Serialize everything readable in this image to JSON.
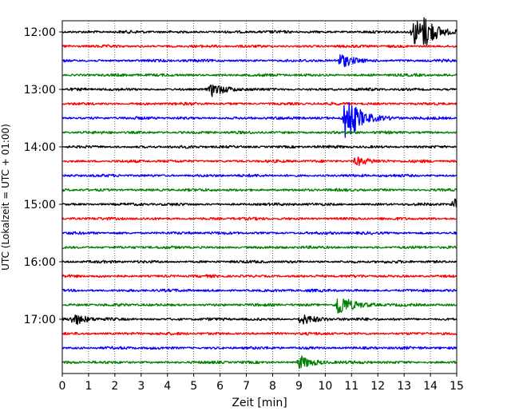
{
  "chart_data": {
    "type": "line",
    "title": "",
    "xlabel": "Zeit  [min]",
    "ylabel": "UTC (Lokalzeit = UTC + 01:00)",
    "xlim": [
      0,
      15
    ],
    "x_ticks": [
      "0",
      "1",
      "2",
      "3",
      "4",
      "5",
      "6",
      "7",
      "8",
      "9",
      "10",
      "11",
      "12",
      "13",
      "14",
      "15"
    ],
    "y_ticks": [
      "12:00",
      "13:00",
      "14:00",
      "15:00",
      "16:00",
      "17:00"
    ],
    "grid": "vertical dotted at each minute",
    "trace_interval_minutes": 15,
    "trace_start": "12:00",
    "trace_count": 24,
    "colors": [
      "#000000",
      "#ff0000",
      "#0000ff",
      "#008000"
    ],
    "events": [
      {
        "trace": 0,
        "minute": 13.4,
        "amplitude": 1.0
      },
      {
        "trace": 0,
        "minute": 13.8,
        "amplitude": 0.8
      },
      {
        "trace": 2,
        "minute": 10.6,
        "amplitude": 0.5
      },
      {
        "trace": 4,
        "minute": 5.7,
        "amplitude": 0.45
      },
      {
        "trace": 6,
        "minute": 10.8,
        "amplitude": 2.0
      },
      {
        "trace": 9,
        "minute": 11.2,
        "amplitude": 0.35
      },
      {
        "trace": 12,
        "minute": 14.9,
        "amplitude": 0.35
      },
      {
        "trace": 19,
        "minute": 10.5,
        "amplitude": 0.9
      },
      {
        "trace": 20,
        "minute": 0.45,
        "amplitude": 0.4
      },
      {
        "trace": 20,
        "minute": 9.1,
        "amplitude": 0.4
      },
      {
        "trace": 23,
        "minute": 9.05,
        "amplitude": 0.5
      }
    ]
  }
}
